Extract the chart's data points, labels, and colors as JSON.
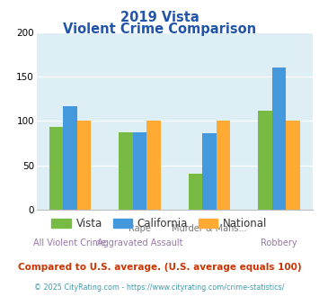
{
  "title_line1": "2019 Vista",
  "title_line2": "Violent Crime Comparison",
  "top_labels": [
    "",
    "Rape",
    "Murder & Mans...",
    ""
  ],
  "bot_labels": [
    "All Violent Crime",
    "Aggravated Assault",
    "",
    "Robbery"
  ],
  "vista": [
    93,
    87,
    40,
    112
  ],
  "california": [
    117,
    87,
    86,
    161
  ],
  "national": [
    100,
    100,
    100,
    100
  ],
  "vista_color": "#77bb44",
  "california_color": "#4499dd",
  "national_color": "#ffaa33",
  "ylim": [
    0,
    200
  ],
  "yticks": [
    0,
    50,
    100,
    150,
    200
  ],
  "bg_color": "#ddeef5",
  "title_color": "#2255aa",
  "note_text": "Compared to U.S. average. (U.S. average equals 100)",
  "note_color": "#cc3300",
  "footer_text": "© 2025 CityRating.com - https://www.cityrating.com/crime-statistics/",
  "footer_color": "#4499aa",
  "top_label_color": "#777777",
  "bot_label_color": "#9977aa"
}
